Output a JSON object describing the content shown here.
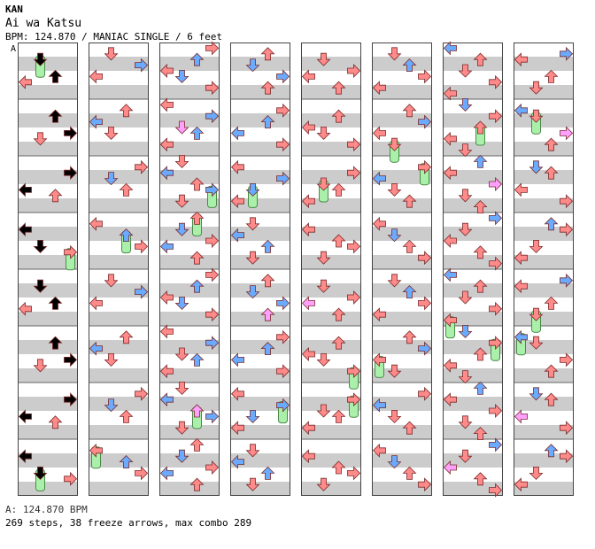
{
  "header": {
    "artist": "KAN",
    "title": "Ai wa Katsu",
    "meta": "BPM: 124.870 / MANIAC SINGLE / 6 feet"
  },
  "footer": {
    "bpm_line": "A: 124.870 BPM",
    "stats_line": "269 steps, 38 freeze arrows, max combo 289"
  },
  "chart": {
    "bpm_marker": "A",
    "columns": 8,
    "measures_per_column": 8,
    "lanes": [
      "left",
      "down",
      "up",
      "right"
    ],
    "colors": {
      "quarter": "#ff8a8a",
      "eighth": "#6aaaff",
      "sixteenth": "#ffa0ff",
      "freeze": "#aaf0aa",
      "band_dark": "#cccccc",
      "band_light": "#ffffff"
    },
    "arrows": [
      [
        [
          1,
          3,
          0.3
        ],
        [
          2,
          3,
          0.6
        ],
        [
          0,
          0,
          0.7
        ]
      ],
      [
        [
          0,
          0,
          0.2
        ],
        [
          2,
          1,
          0.4
        ],
        [
          3,
          0,
          0.6
        ]
      ],
      [
        [
          1,
          0,
          0.1
        ],
        [
          0,
          1,
          0.3
        ],
        [
          2,
          2,
          0.5
        ],
        [
          3,
          1,
          0.6
        ],
        [
          1,
          0,
          0.8
        ]
      ],
      [
        [
          3,
          0,
          0.2
        ],
        [
          2,
          1,
          0.4
        ],
        [
          0,
          1,
          0.6
        ],
        [
          3,
          2,
          0.8
        ]
      ],
      [
        [
          1,
          0,
          0.3
        ],
        [
          3,
          0,
          0.5
        ],
        [
          0,
          2,
          0.6
        ],
        [
          2,
          0,
          0.8
        ]
      ],
      [
        [
          0,
          0,
          0.2
        ],
        [
          1,
          1,
          0.4
        ],
        [
          2,
          0,
          0.6
        ],
        [
          3,
          0,
          0.8
        ]
      ],
      [
        [
          2,
          1,
          0.1
        ],
        [
          0,
          0,
          0.3
        ],
        [
          3,
          2,
          0.5
        ],
        [
          1,
          0,
          0.7
        ],
        [
          2,
          0,
          0.9
        ]
      ],
      [
        [
          0,
          1,
          0.2
        ],
        [
          1,
          0,
          0.3
        ],
        [
          3,
          2,
          0.6
        ],
        [
          2,
          0,
          0.8
        ]
      ]
    ]
  }
}
